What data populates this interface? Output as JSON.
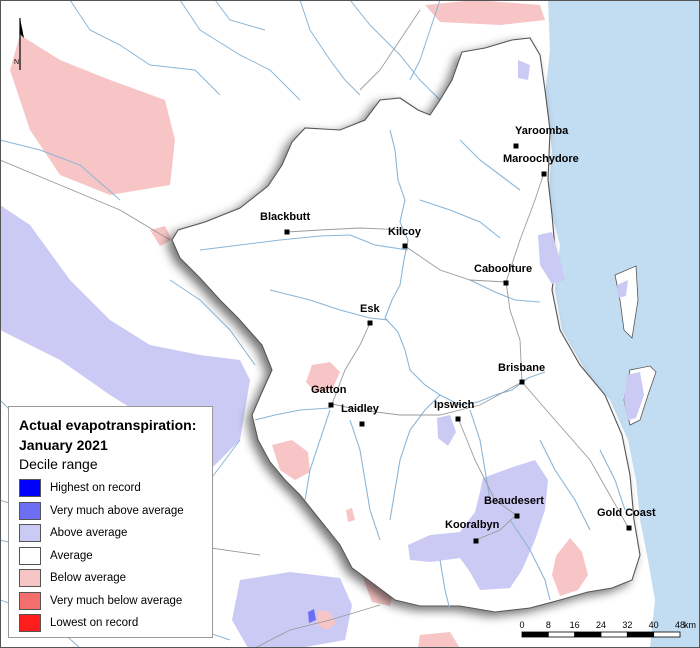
{
  "legend": {
    "title_line1": "Actual evapotranspiration:",
    "title_line2": "January 2021",
    "subtitle": "Decile range",
    "items": [
      {
        "label": "Highest on record",
        "color": "#0000ff"
      },
      {
        "label": "Very much above average",
        "color": "#6e6ef5"
      },
      {
        "label": "Above average",
        "color": "#cacaf5"
      },
      {
        "label": "Average",
        "color": "#ffffff"
      },
      {
        "label": "Below average",
        "color": "#f7c5c5"
      },
      {
        "label": "Very much below average",
        "color": "#f56e6e"
      },
      {
        "label": "Lowest on record",
        "color": "#ff1c1c"
      }
    ]
  },
  "north": "N",
  "towns": [
    {
      "name": "Yaroomba"
    },
    {
      "name": "Maroochydore"
    },
    {
      "name": "Blackbutt"
    },
    {
      "name": "Kilcoy"
    },
    {
      "name": "Caboolture"
    },
    {
      "name": "Esk"
    },
    {
      "name": "Brisbane"
    },
    {
      "name": "Gatton"
    },
    {
      "name": "Laidley"
    },
    {
      "name": "Ipswich"
    },
    {
      "name": "Beaudesert"
    },
    {
      "name": "Gold Coast"
    },
    {
      "name": "Kooralbyn"
    }
  ],
  "scale": {
    "ticks": [
      "0",
      "8",
      "16",
      "24",
      "32",
      "40",
      "48"
    ],
    "unit": "km"
  },
  "colors": {
    "sea": "#c2dcf2",
    "river": "#8ab6d8",
    "boundary": "#555555",
    "road": "#9a9a9a"
  }
}
